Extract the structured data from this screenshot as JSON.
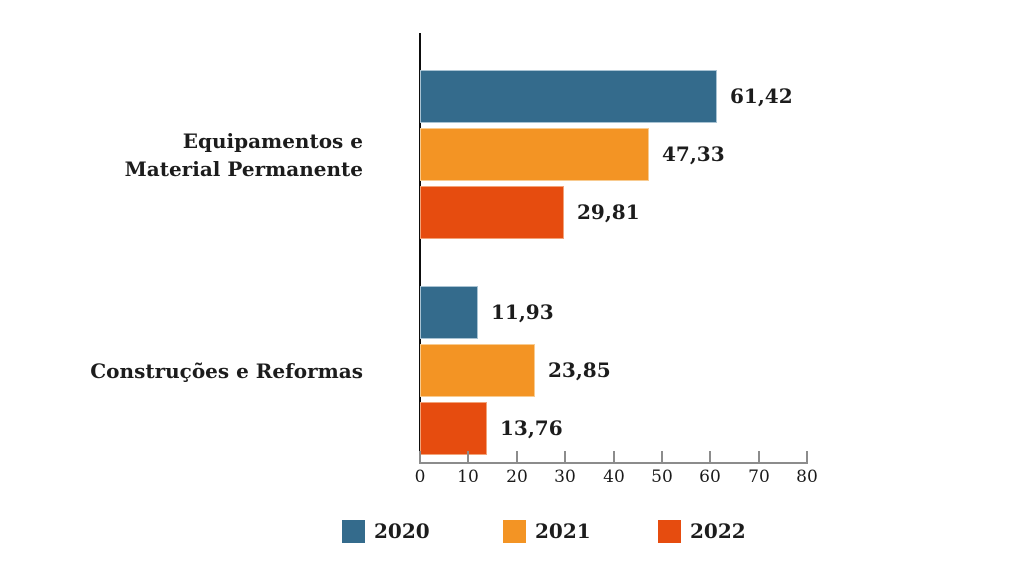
{
  "chart_data": {
    "type": "bar",
    "orientation": "horizontal",
    "title": "",
    "xlabel": "",
    "ylabel": "",
    "grid": false,
    "categories": [
      "Equipamentos e Material Permanente",
      "Construções e Reformas"
    ],
    "category_lines": [
      [
        "Equipamentos e",
        "Material Permanente"
      ],
      [
        "Construções e Reformas"
      ]
    ],
    "series": [
      {
        "name": "2020",
        "color": "#346B8C",
        "edge_color": "#A9C3D3",
        "values": [
          61.42,
          11.93
        ],
        "value_labels": [
          "61,42",
          "11,93"
        ]
      },
      {
        "name": "2021",
        "color": "#F39424",
        "edge_color": "#F8CB90",
        "values": [
          47.33,
          23.85
        ],
        "value_labels": [
          "47,33",
          "23,85"
        ]
      },
      {
        "name": "2022",
        "color": "#E64C0F",
        "edge_color": "#F2A379",
        "values": [
          29.81,
          13.76
        ],
        "value_labels": [
          "29,81",
          "13,76"
        ]
      }
    ],
    "x_axis": {
      "min": 0,
      "max": 80,
      "tick_step": 10,
      "tick_labels": [
        "0",
        "10",
        "20",
        "30",
        "40",
        "50",
        "60",
        "70",
        "80"
      ]
    },
    "legend": {
      "position": "bottom",
      "entries": [
        "2020",
        "2021",
        "2022"
      ]
    },
    "colors": {
      "y_axis_line": "#0D0D0D",
      "x_axis_line": "#8C8C8C",
      "tick_mark": "#8C8C8C",
      "text": "#1C1C1C",
      "background": "#FFFFFF"
    }
  }
}
